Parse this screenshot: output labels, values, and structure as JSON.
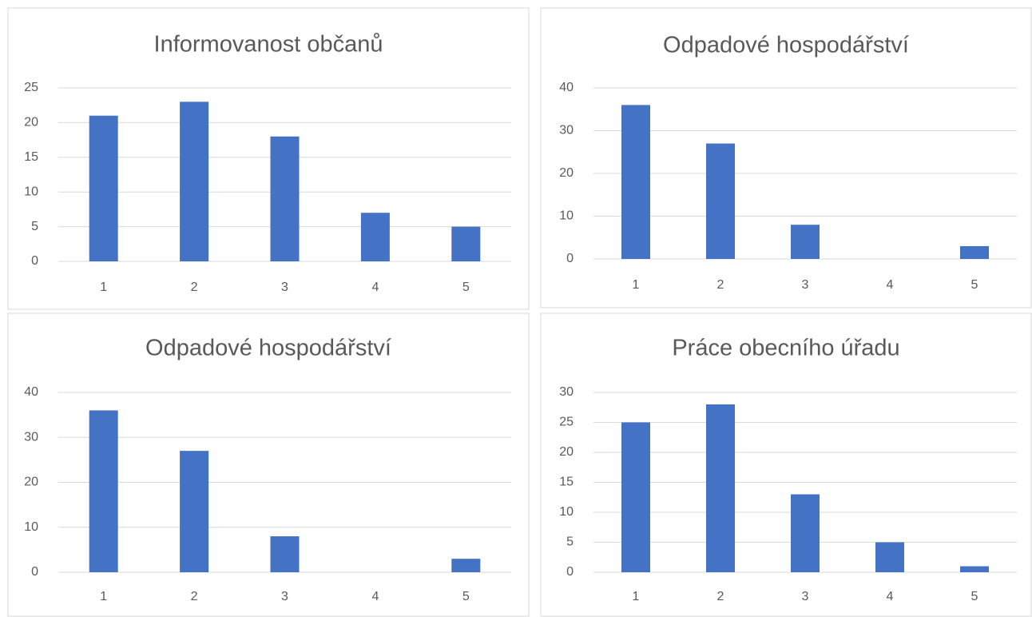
{
  "chart_data": [
    {
      "type": "bar",
      "title": "Informovanost občanů",
      "categories": [
        "1",
        "2",
        "3",
        "4",
        "5"
      ],
      "values": [
        21,
        23,
        18,
        7,
        5
      ],
      "color": "#4472c4",
      "ylim": [
        0,
        25
      ],
      "yticks": [
        0,
        5,
        10,
        15,
        20,
        25
      ],
      "grid": true
    },
    {
      "type": "bar",
      "title": "Odpadové hospodářství",
      "categories": [
        "1",
        "2",
        "3",
        "4",
        "5"
      ],
      "values": [
        36,
        27,
        8,
        0,
        3
      ],
      "color": "#4472c4",
      "ylim": [
        0,
        40
      ],
      "yticks": [
        0,
        10,
        20,
        30,
        40
      ],
      "grid": true
    },
    {
      "type": "bar",
      "title": "Odpadové hospodářství",
      "categories": [
        "1",
        "2",
        "3",
        "4",
        "5"
      ],
      "values": [
        36,
        27,
        8,
        0,
        3
      ],
      "color": "#4472c4",
      "ylim": [
        0,
        40
      ],
      "yticks": [
        0,
        10,
        20,
        30,
        40
      ],
      "grid": true
    },
    {
      "type": "bar",
      "title": "Práce obecního úřadu",
      "categories": [
        "1",
        "2",
        "3",
        "4",
        "5"
      ],
      "values": [
        25,
        28,
        13,
        5,
        1
      ],
      "color": "#4472c4",
      "ylim": [
        0,
        30
      ],
      "yticks": [
        0,
        5,
        10,
        15,
        20,
        25,
        30
      ],
      "grid": true
    }
  ]
}
